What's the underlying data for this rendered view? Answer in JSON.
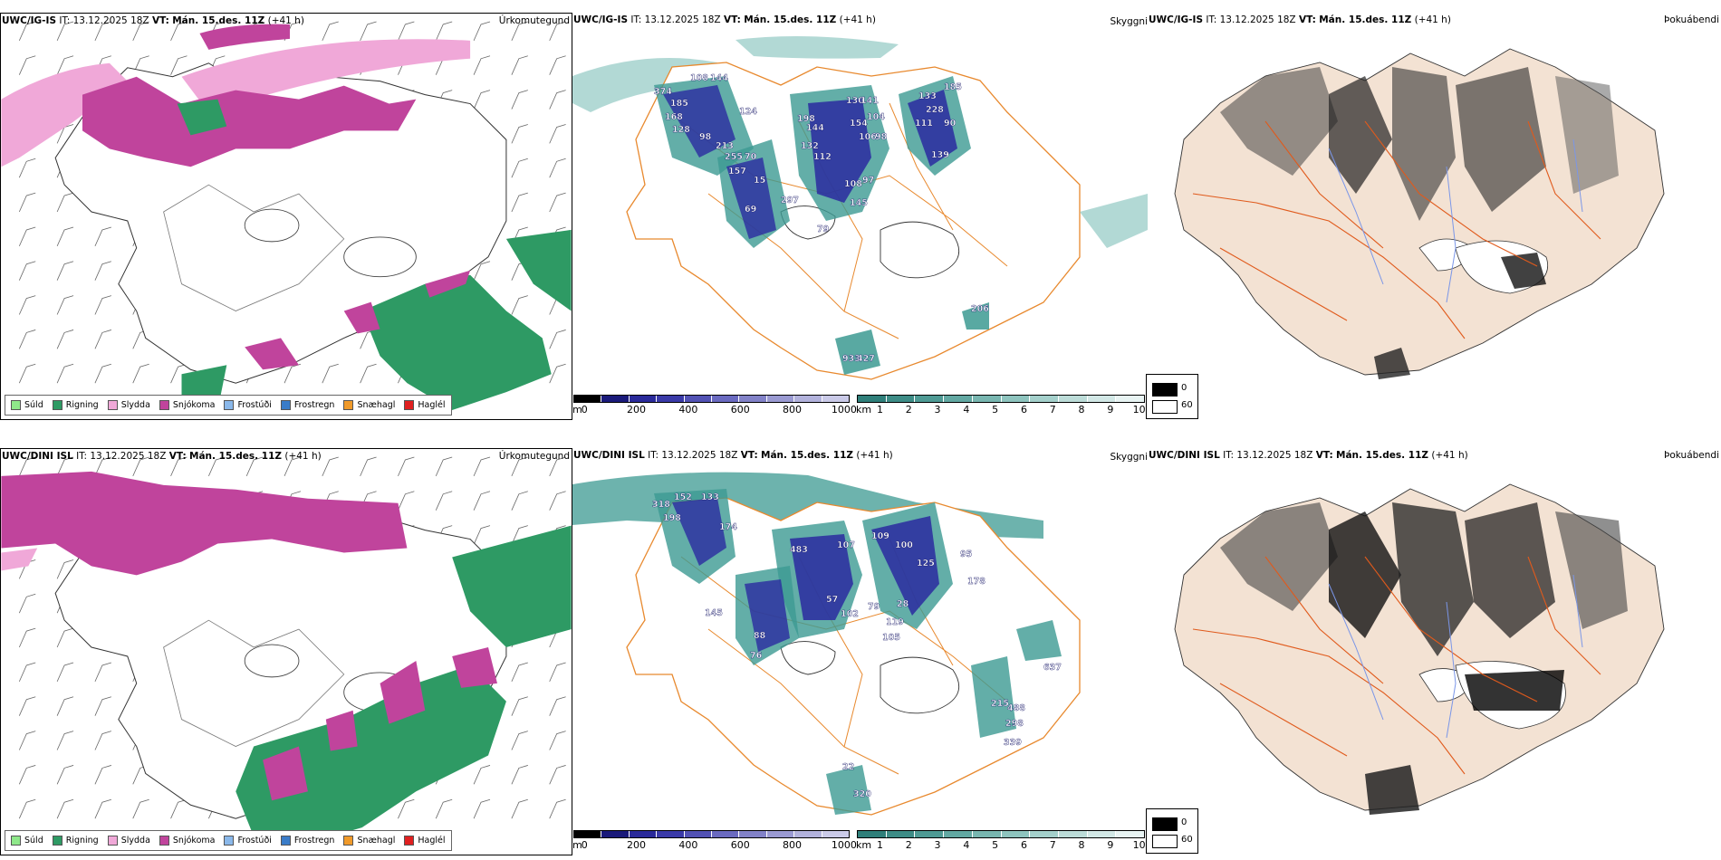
{
  "rows": [
    {
      "model": "UWC/IG-IS",
      "it_label": "IT:",
      "init": "13.12.2025 18Z",
      "vt_label": "VT:",
      "valid": "Mán. 15.des. 11Z",
      "lead": "(+41 h)",
      "precip_title": "Úrkomutegund",
      "cloud_title": "Skyggni",
      "fog_title": "Þokuábendi",
      "peak_labels": [
        "374",
        "185",
        "168",
        "128",
        "108",
        "144",
        "98",
        "213",
        "255",
        "124",
        "157",
        "70",
        "198",
        "144",
        "132",
        "112",
        "130",
        "141",
        "104",
        "154",
        "106",
        "98",
        "133",
        "228",
        "111",
        "185",
        "90",
        "139",
        "15",
        "108",
        "97",
        "145",
        "297",
        "69",
        "79",
        "206",
        "933",
        "427"
      ]
    },
    {
      "model": "UWC/DINI ISL",
      "it_label": "IT:",
      "init": "13.12.2025 18Z",
      "vt_label": "VT:",
      "valid": "Mán. 15.des. 11Z",
      "lead": "(+41 h)",
      "precip_title": "Úrkomutegund",
      "cloud_title": "Skyggni",
      "fog_title": "Þokuábendi",
      "peak_labels": [
        "318",
        "152",
        "133",
        "198",
        "174",
        "483",
        "107",
        "109",
        "100",
        "125",
        "95",
        "178",
        "57",
        "102",
        "79",
        "28",
        "119",
        "105",
        "88",
        "76",
        "145",
        "637",
        "215",
        "488",
        "298",
        "339",
        "22",
        "320"
      ]
    }
  ],
  "precip_legend": [
    {
      "label": "Súld",
      "color": "#8fe88a"
    },
    {
      "label": "Rigning",
      "color": "#2e9a64"
    },
    {
      "label": "Slydda",
      "color": "#f0a8d8"
    },
    {
      "label": "Snjókoma",
      "color": "#c0449c"
    },
    {
      "label": "Frostúði",
      "color": "#8ab8ea"
    },
    {
      "label": "Frostregn",
      "color": "#3a7cc8"
    },
    {
      "label": "Snæhagl",
      "color": "#f09a2a"
    },
    {
      "label": "Haglél",
      "color": "#e02020"
    }
  ],
  "height_scale": {
    "unit": "m",
    "ticks": [
      "0",
      "200",
      "400",
      "600",
      "800",
      "1000"
    ],
    "colors": [
      "#000000",
      "#1a1a7a",
      "#2a2a9a",
      "#3a3aa8",
      "#5252b4",
      "#6a6ac0",
      "#8282c8",
      "#9a9ad2",
      "#b2b2dc",
      "#cacae8"
    ]
  },
  "visibility_scale": {
    "unit": "km",
    "ticks": [
      "1",
      "2",
      "3",
      "4",
      "5",
      "6",
      "7",
      "8",
      "9",
      "10"
    ],
    "colors": [
      "#2f7f7a",
      "#3d8c86",
      "#4e9a94",
      "#62a8a2",
      "#78b6b0",
      "#8ec4be",
      "#a4d0cb",
      "#bcdcd8",
      "#d2e8e6",
      "#e8f4f3"
    ]
  },
  "cloud_legend": [
    {
      "label": "0",
      "color": "#000000"
    },
    {
      "label": "60",
      "color": "#ffffff"
    }
  ],
  "colors": {
    "land_fill": "#f3e2d3",
    "road": "#e05a1c",
    "road_orange": "#e8892e",
    "river": "#7a96e8",
    "snow": "#c0449c",
    "sleet": "#f0a8d8",
    "rain": "#2e9a64",
    "teal": "#3c9a92",
    "blue_cloud": "#2a2aa0"
  }
}
